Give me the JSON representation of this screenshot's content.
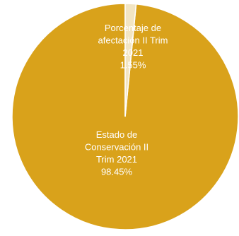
{
  "chart_data": {
    "type": "pie",
    "categories": [
      "Porcentaje de afectación II Trim 2021",
      "Estado de Conservación II Trim 2021"
    ],
    "values": [
      1.55,
      98.45
    ],
    "value_labels": [
      "1.55%",
      "98.45%"
    ],
    "label_lines": [
      [
        "Porcentaje de",
        "afectación II Trim",
        "2021",
        "1.55%"
      ],
      [
        "Estado de",
        "Conservación II",
        "Trim 2021",
        "98.45%"
      ]
    ],
    "colors": [
      "#F2E5C3",
      "#D9A21B"
    ],
    "legend": "none",
    "title": ""
  }
}
